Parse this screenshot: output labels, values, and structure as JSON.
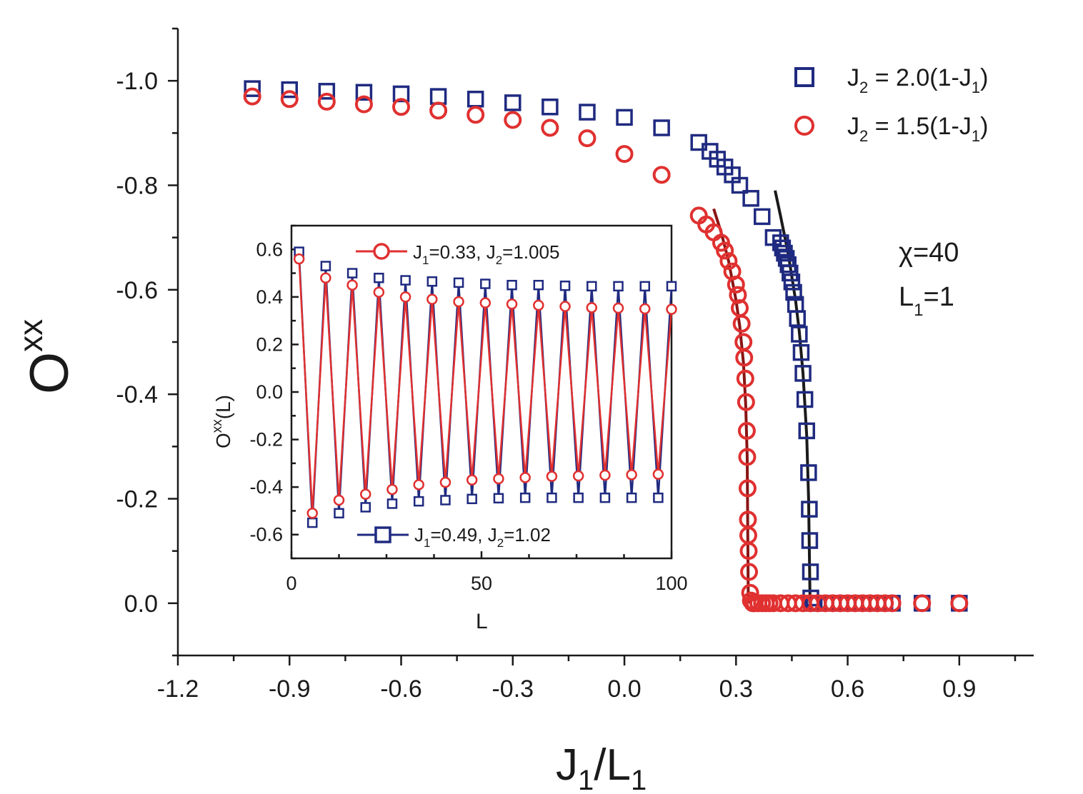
{
  "chart_data": [
    {
      "type": "scatter",
      "xlabel": {
        "base": "J",
        "sub1": "1",
        "mid": "/L",
        "sub2": "1"
      },
      "ylabel": {
        "base": "O",
        "sup": "xx"
      },
      "xlim": [
        -1.2,
        1.1
      ],
      "ylim": [
        0.1,
        -1.1
      ],
      "x_ticks": [
        "-1.2",
        "-0.9",
        "-0.6",
        "-0.3",
        "0.0",
        "0.3",
        "0.6",
        "0.9"
      ],
      "y_ticks": [
        "-1.0",
        "-0.8",
        "-0.6",
        "-0.4",
        "-0.2",
        "0.0"
      ],
      "annotation": {
        "chi": "χ=40",
        "L1": "L",
        "L1_sub": "1",
        "L1_val": "=1"
      },
      "legend": {
        "placement": "top-right",
        "entries": [
          {
            "label_pre": "J",
            "sub1": "2",
            "label_mid": " = 2.0(1-J",
            "sub2": "1",
            "label_post": ")",
            "marker": "square",
            "color": "#1f2a80"
          },
          {
            "label_pre": "J",
            "sub1": "2",
            "label_mid": " = 1.5(1-J",
            "sub2": "1",
            "label_post": ")",
            "marker": "circle",
            "color": "#e03030"
          }
        ]
      },
      "series": [
        {
          "marker": "square",
          "color": "#1f2a80",
          "x": [
            -1.0,
            -0.9,
            -0.8,
            -0.7,
            -0.6,
            -0.5,
            -0.4,
            -0.3,
            -0.2,
            -0.1,
            0.0,
            0.1,
            0.2,
            0.23,
            0.25,
            0.27,
            0.29,
            0.31,
            0.34,
            0.37,
            0.4,
            0.42,
            0.425,
            0.43,
            0.435,
            0.44,
            0.445,
            0.45,
            0.455,
            0.46,
            0.465,
            0.47,
            0.475,
            0.48,
            0.485,
            0.49,
            0.495,
            0.497,
            0.498,
            0.5,
            0.501,
            0.503,
            0.506,
            0.51,
            0.52,
            0.54,
            0.56,
            0.58,
            0.6,
            0.62,
            0.64,
            0.66,
            0.68,
            0.7,
            0.72,
            0.8,
            0.9
          ],
          "y": [
            -0.985,
            -0.983,
            -0.98,
            -0.978,
            -0.975,
            -0.97,
            -0.965,
            -0.958,
            -0.95,
            -0.94,
            -0.93,
            -0.91,
            -0.882,
            -0.865,
            -0.85,
            -0.835,
            -0.82,
            -0.8,
            -0.775,
            -0.74,
            -0.7,
            -0.69,
            -0.68,
            -0.67,
            -0.66,
            -0.648,
            -0.632,
            -0.615,
            -0.595,
            -0.572,
            -0.545,
            -0.515,
            -0.48,
            -0.44,
            -0.39,
            -0.33,
            -0.25,
            -0.18,
            -0.12,
            -0.06,
            -0.01,
            0.0,
            0.0,
            0.0,
            0.0,
            0.0,
            0.0,
            0.0,
            0.0,
            0.0,
            0.0,
            0.0,
            0.0,
            0.0,
            0.0,
            0.0,
            0.0
          ]
        },
        {
          "marker": "circle",
          "color": "#e03030",
          "x": [
            -1.0,
            -0.9,
            -0.8,
            -0.7,
            -0.6,
            -0.5,
            -0.4,
            -0.3,
            -0.2,
            -0.1,
            0.0,
            0.1,
            0.2,
            0.22,
            0.24,
            0.26,
            0.27,
            0.28,
            0.29,
            0.3,
            0.305,
            0.31,
            0.315,
            0.32,
            0.322,
            0.325,
            0.327,
            0.329,
            0.33,
            0.331,
            0.332,
            0.333,
            0.334,
            0.335,
            0.338,
            0.34,
            0.345,
            0.35,
            0.36,
            0.37,
            0.38,
            0.39,
            0.4,
            0.42,
            0.44,
            0.46,
            0.48,
            0.5,
            0.52,
            0.54,
            0.56,
            0.58,
            0.6,
            0.62,
            0.64,
            0.66,
            0.68,
            0.7,
            0.72,
            0.8,
            0.9
          ],
          "y": [
            -0.97,
            -0.965,
            -0.96,
            -0.955,
            -0.95,
            -0.943,
            -0.935,
            -0.925,
            -0.91,
            -0.89,
            -0.86,
            -0.82,
            -0.742,
            -0.725,
            -0.71,
            -0.69,
            -0.675,
            -0.655,
            -0.635,
            -0.61,
            -0.59,
            -0.565,
            -0.535,
            -0.5,
            -0.47,
            -0.43,
            -0.385,
            -0.33,
            -0.28,
            -0.22,
            -0.16,
            -0.13,
            -0.1,
            -0.06,
            -0.02,
            -0.005,
            0.0,
            0.0,
            0.0,
            0.0,
            0.0,
            0.0,
            0.0,
            0.0,
            0.0,
            0.0,
            0.0,
            0.0,
            0.0,
            0.0,
            0.0,
            0.0,
            0.0,
            0.0,
            0.0,
            0.0,
            0.0,
            0.0,
            0.0,
            0.0,
            0.0
          ]
        }
      ],
      "fit_lines": [
        {
          "color": "#1a1a1a",
          "x": [
            0.405,
            0.42,
            0.44,
            0.46,
            0.47,
            0.48,
            0.49,
            0.495,
            0.499
          ],
          "y": [
            -0.79,
            -0.74,
            -0.67,
            -0.58,
            -0.52,
            -0.44,
            -0.32,
            -0.2,
            0.0
          ]
        },
        {
          "color": "#8a1414",
          "x": [
            0.24,
            0.26,
            0.28,
            0.3,
            0.31,
            0.32,
            0.326,
            0.33,
            0.333
          ],
          "y": [
            -0.755,
            -0.71,
            -0.655,
            -0.58,
            -0.53,
            -0.46,
            -0.38,
            -0.28,
            0.0
          ]
        }
      ]
    },
    {
      "type": "line",
      "xlabel": "L",
      "ylabel": {
        "base": "O",
        "sup": "xx",
        "post": "(L)"
      },
      "xlim": [
        0,
        100
      ],
      "ylim": [
        -0.7,
        0.7
      ],
      "x_ticks": [
        "0",
        "50",
        "100"
      ],
      "y_ticks": [
        "0.6",
        "0.4",
        "0.2",
        "0.0",
        "-0.2",
        "-0.4",
        "-0.6"
      ],
      "legend": {
        "entries": [
          {
            "label_pre": "J",
            "sub1": "1",
            "label_mid": "=0.33, J",
            "sub2": "2",
            "label_post": "=1.005",
            "marker": "circle",
            "color": "#e03030",
            "placement": "top"
          },
          {
            "label_pre": "J",
            "sub1": "1",
            "label_mid": "=0.49, J",
            "sub2": "2",
            "label_post": "=1.02",
            "marker": "square",
            "color": "#1f2a80",
            "placement": "bottom"
          }
        ]
      },
      "series": [
        {
          "marker": "square",
          "color": "#1f2a80",
          "x_start": 2,
          "x_step": 3.5,
          "count": 29,
          "even_values": [
            0.59,
            0.53,
            0.5,
            0.48,
            0.47,
            0.465,
            0.46,
            0.455,
            0.45,
            0.45,
            0.447,
            0.445,
            0.445,
            0.445,
            0.445
          ],
          "odd_values": [
            -0.55,
            -0.51,
            -0.485,
            -0.47,
            -0.46,
            -0.455,
            -0.45,
            -0.447,
            -0.445,
            -0.445,
            -0.445,
            -0.445,
            -0.445,
            -0.445
          ]
        },
        {
          "marker": "circle",
          "color": "#e03030",
          "x_start": 2,
          "x_step": 3.5,
          "count": 29,
          "even_values": [
            0.56,
            0.48,
            0.45,
            0.42,
            0.4,
            0.39,
            0.38,
            0.375,
            0.37,
            0.365,
            0.36,
            0.355,
            0.353,
            0.35,
            0.348
          ],
          "odd_values": [
            -0.51,
            -0.455,
            -0.43,
            -0.41,
            -0.39,
            -0.38,
            -0.37,
            -0.365,
            -0.36,
            -0.355,
            -0.353,
            -0.35,
            -0.348,
            -0.346
          ]
        }
      ]
    }
  ]
}
